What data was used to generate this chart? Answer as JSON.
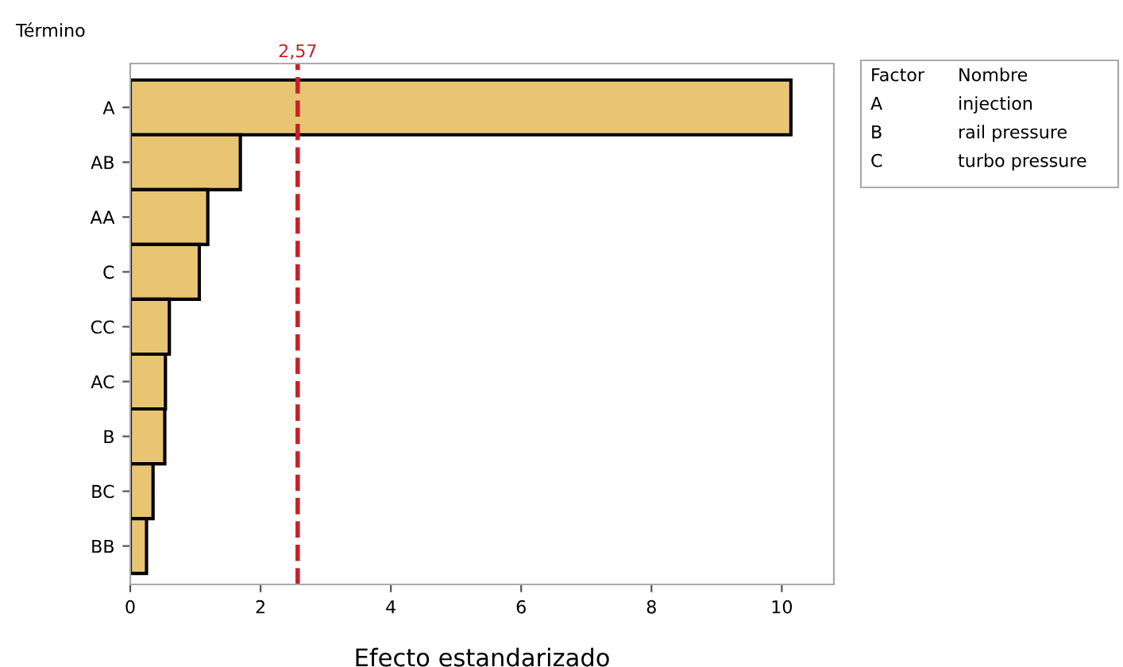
{
  "chart_data": {
    "type": "bar",
    "orientation": "horizontal",
    "ylabel": "Término",
    "xlabel": "Efecto estandarizado",
    "categories": [
      "A",
      "AB",
      "AA",
      "C",
      "CC",
      "AC",
      "B",
      "BC",
      "BB"
    ],
    "values": [
      10.14,
      1.69,
      1.19,
      1.06,
      0.6,
      0.54,
      0.53,
      0.35,
      0.25
    ],
    "color": "#e8c572",
    "xlim": [
      0,
      10.8
    ],
    "xticks": [
      0,
      2,
      4,
      6,
      8,
      10
    ],
    "ref_lines": [
      {
        "axis": "x",
        "value": 2.57,
        "label": "2,57",
        "color": "#c8202a",
        "line_style": "dashed"
      }
    ],
    "annotations": [
      "Factor",
      "Nombre",
      "A",
      "injection",
      "B",
      "rail pressure",
      "C",
      "turbo pressure"
    ],
    "grid": false,
    "legend": false
  }
}
